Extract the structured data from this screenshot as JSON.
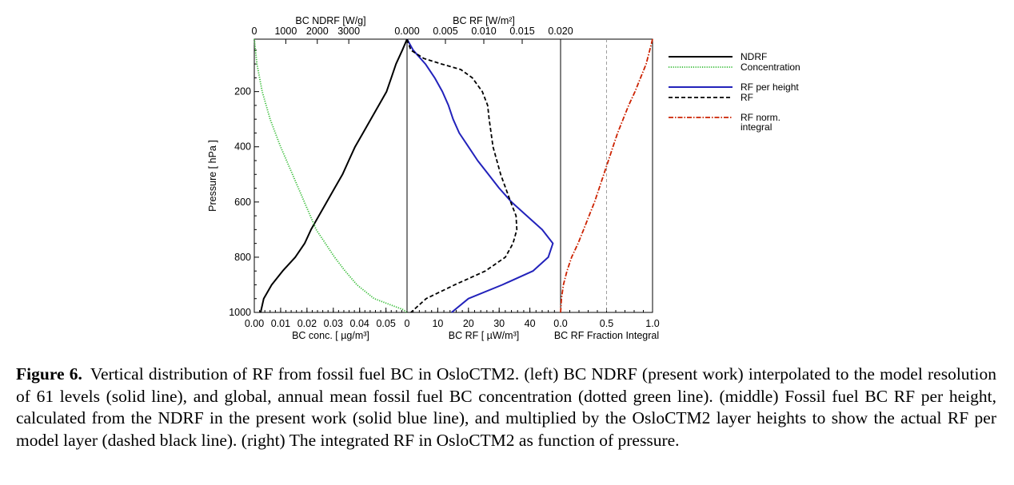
{
  "caption": {
    "label": "Figure 6.",
    "text": "Vertical distribution of RF from fossil fuel BC in OsloCTM2. (left) BC NDRF (present work) interpolated to the model resolution of 61 levels (solid line), and global, annual mean fossil fuel BC concentration (dotted green line). (middle) Fossil fuel BC RF per height, calculated from the NDRF in the present work (solid blue line), and multiplied by the OsloCTM2 layer heights to show the actual RF per model layer (dashed black line). (right) The integrated RF in OsloCTM2 as function of pressure."
  },
  "colors": {
    "ndrf": "#000000",
    "concentration": "#33bb33",
    "rf_per_height": "#2222bb",
    "rf": "#000000",
    "rf_norm_integral": "#cc2200"
  },
  "chart_data": {
    "type": "line",
    "ylabel": "Pressure [ hPa ]",
    "ylim": [
      1000,
      10
    ],
    "yticks": [
      200,
      400,
      600,
      800,
      1000
    ],
    "panels": [
      {
        "name": "left",
        "xlabel_bottom": "BC conc. [ µg/m³]",
        "xlim_bottom": [
          0.0,
          0.058
        ],
        "xticks_bottom": [
          "0.00",
          "0.01",
          "0.02",
          "0.03",
          "0.04",
          "0.05"
        ],
        "xlabel_top": "BC NDRF [W/g]",
        "xlim_top": [
          0,
          4850
        ],
        "xticks_top": [
          "0",
          "1000",
          "2000",
          "3000"
        ],
        "series": [
          {
            "name": "NDRF",
            "axis": "top",
            "style": "solid",
            "color_key": "ndrf",
            "p": [
              10,
              50,
              100,
              150,
              200,
              250,
              300,
              350,
              400,
              450,
              500,
              550,
              600,
              650,
              700,
              750,
              800,
              850,
              900,
              950,
              1000
            ],
            "x": [
              4850,
              4700,
              4500,
              4350,
              4200,
              3950,
              3700,
              3450,
              3200,
              3000,
              2800,
              2550,
              2300,
              2050,
              1800,
              1600,
              1300,
              900,
              550,
              300,
              200
            ]
          },
          {
            "name": "Concentration",
            "axis": "bottom",
            "style": "dotted",
            "color_key": "concentration",
            "p": [
              10,
              100,
              200,
              300,
              400,
              500,
              600,
              700,
              800,
              850,
              900,
              950,
              970,
              990,
              1000
            ],
            "x": [
              0.0,
              0.001,
              0.003,
              0.006,
              0.01,
              0.0145,
              0.019,
              0.0235,
              0.0305,
              0.0345,
              0.039,
              0.0455,
              0.051,
              0.0565,
              0.058
            ]
          }
        ]
      },
      {
        "name": "middle",
        "xlabel_bottom": "BC RF [ µW/m³]",
        "xlim_bottom": [
          0,
          50
        ],
        "xticks_bottom": [
          "0",
          "10",
          "20",
          "30",
          "40"
        ],
        "xlabel_top": "BC RF [W/m²]",
        "xlim_top": [
          0.0,
          0.02
        ],
        "xticks_top": [
          "0.000",
          "0.005",
          "0.010",
          "0.015",
          "0.020"
        ],
        "series": [
          {
            "name": "RF per height",
            "axis": "bottom",
            "style": "solid",
            "color_key": "rf_per_height",
            "p": [
              10,
              50,
              100,
              150,
              200,
              250,
              300,
              350,
              400,
              450,
              500,
              550,
              600,
              650,
              700,
              750,
              800,
              850,
              900,
              950,
              1000
            ],
            "x": [
              0,
              2,
              6,
              9,
              11.5,
              13.5,
              15,
              17,
              20,
              23,
              26.5,
              30,
              34,
              39,
              44,
              47.5,
              46,
              41,
              31,
              20,
              14.5
            ]
          },
          {
            "name": "RF",
            "axis": "top",
            "style": "dashed",
            "color_key": "rf",
            "p": [
              10,
              50,
              80,
              100,
              120,
              150,
              200,
              250,
              300,
              400,
              500,
              600,
              650,
              700,
              750,
              800,
              850,
              900,
              950,
              1000
            ],
            "x": [
              0.0,
              0.0005,
              0.0022,
              0.0045,
              0.007,
              0.0085,
              0.0098,
              0.0105,
              0.0107,
              0.0112,
              0.0122,
              0.0135,
              0.0142,
              0.0143,
              0.0138,
              0.0128,
              0.0102,
              0.0062,
              0.0025,
              0.0005
            ]
          }
        ]
      },
      {
        "name": "right",
        "xlabel_bottom": "BC RF Fraction Integral",
        "xlim_bottom": [
          0.0,
          1.0
        ],
        "xticks_bottom": [
          "0.0",
          "0.5",
          "1.0"
        ],
        "reference_line_x": 0.5,
        "series": [
          {
            "name": "RF norm. integral",
            "axis": "bottom",
            "style": "dashdot",
            "color_key": "rf_norm_integral",
            "p": [
              10,
              50,
              100,
              150,
              200,
              250,
              300,
              350,
              400,
              450,
              500,
              550,
              600,
              650,
              700,
              750,
              800,
              850,
              900,
              950,
              1000
            ],
            "x": [
              1.0,
              0.97,
              0.93,
              0.87,
              0.81,
              0.74,
              0.68,
              0.62,
              0.57,
              0.52,
              0.47,
              0.42,
              0.37,
              0.31,
              0.25,
              0.19,
              0.12,
              0.07,
              0.03,
              0.01,
              0.0
            ]
          }
        ]
      }
    ],
    "legend": {
      "placement": "right",
      "entries": [
        {
          "label_lines": [
            "NDRF"
          ],
          "style": "solid",
          "color_key": "ndrf"
        },
        {
          "label_lines": [
            "Concentration"
          ],
          "style": "dotted",
          "color_key": "concentration"
        },
        {
          "label_lines": [
            "RF per height"
          ],
          "style": "solid",
          "color_key": "rf_per_height"
        },
        {
          "label_lines": [
            "RF"
          ],
          "style": "dashed",
          "color_key": "rf"
        },
        {
          "label_lines": [
            "RF norm.",
            "integral"
          ],
          "style": "dashdot",
          "color_key": "rf_norm_integral"
        }
      ]
    }
  }
}
